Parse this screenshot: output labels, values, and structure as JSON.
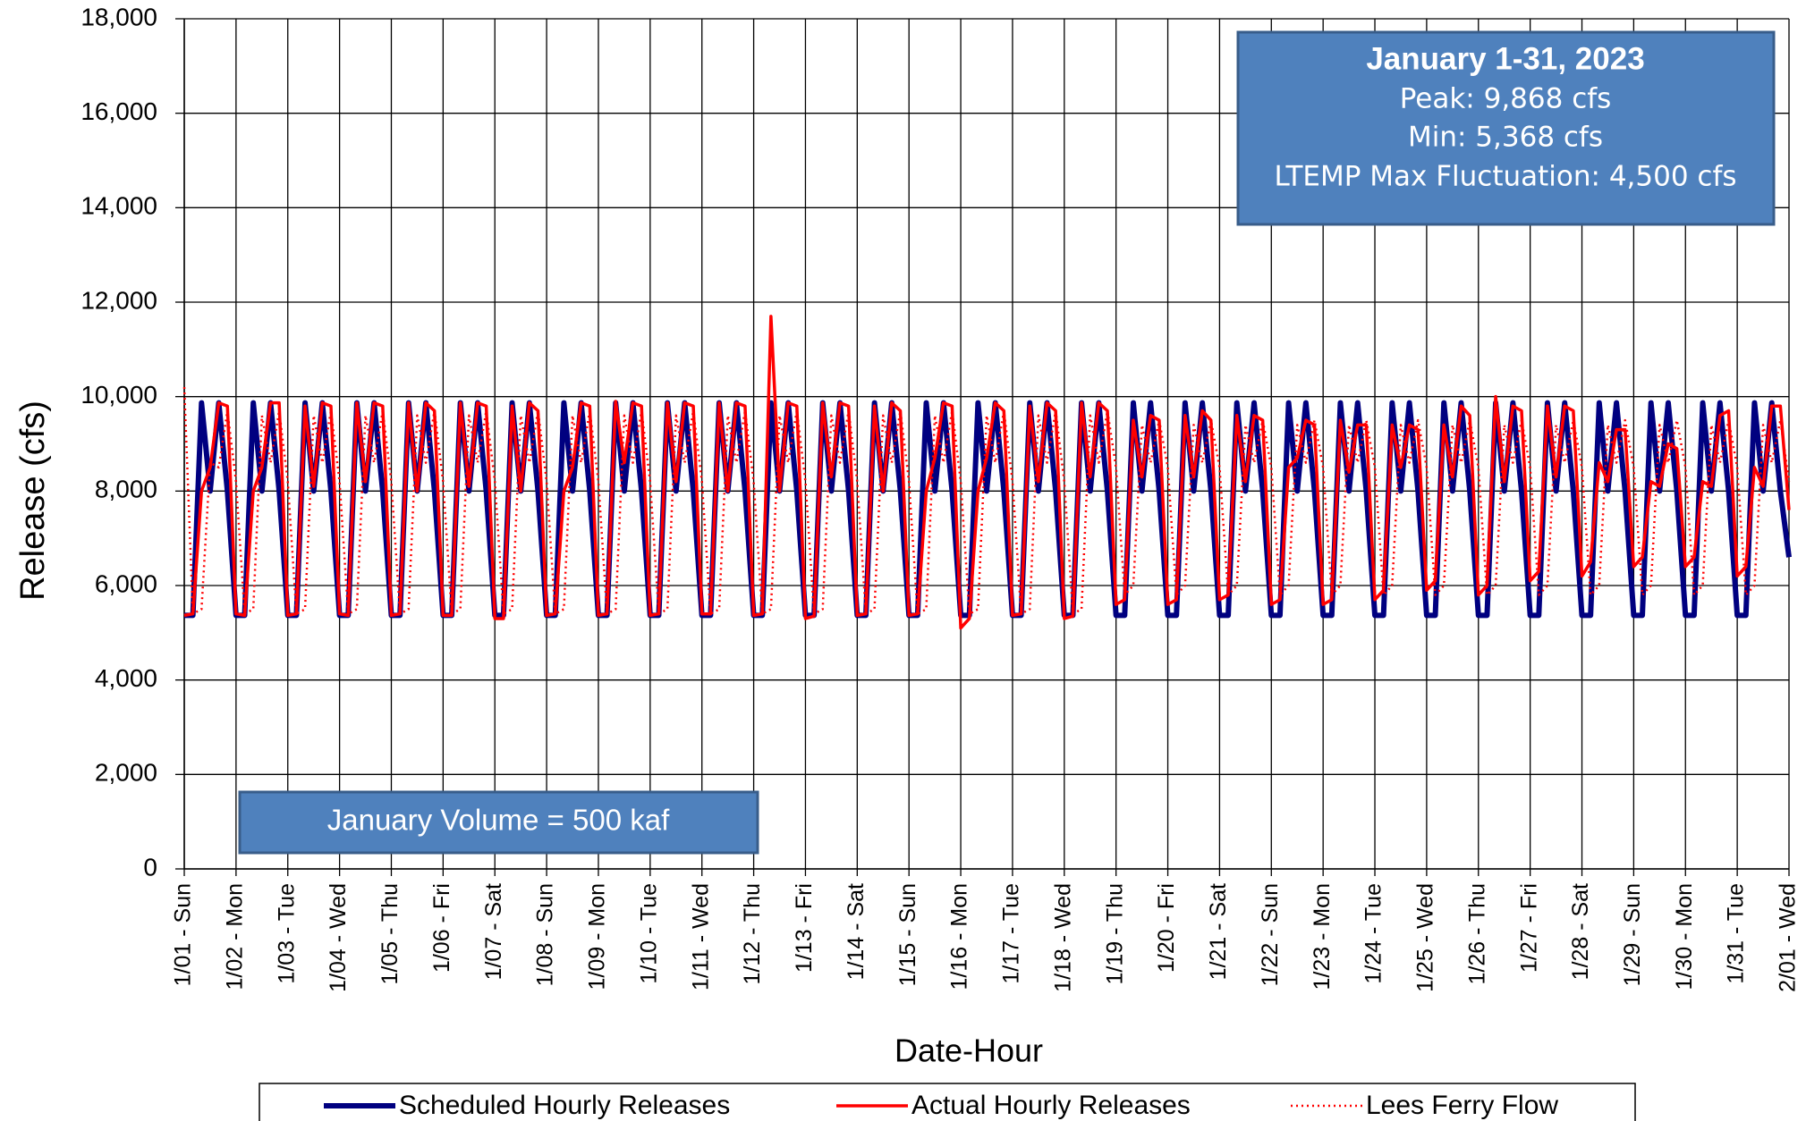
{
  "chart_data": {
    "type": "line",
    "x": [
      0,
      4,
      8,
      12,
      16,
      20,
      24,
      28,
      32,
      36,
      40,
      44,
      48,
      52,
      56,
      60,
      64,
      68,
      72,
      76,
      80,
      84,
      88,
      92,
      96,
      100,
      104,
      108,
      112,
      116,
      120,
      124,
      128,
      132,
      136,
      140,
      144,
      148,
      152,
      156,
      160,
      164,
      168,
      172,
      176,
      180,
      184,
      188,
      192,
      196,
      200,
      204,
      208,
      212,
      216,
      220,
      224,
      228,
      232,
      236,
      240,
      244,
      248,
      252,
      256,
      260,
      264,
      268,
      272,
      276,
      280,
      284,
      288,
      292,
      296,
      300,
      304,
      308,
      312,
      316,
      320,
      324,
      328,
      332,
      336,
      340,
      344,
      348,
      352,
      356,
      360,
      364,
      368,
      372,
      376,
      380,
      384,
      388,
      392,
      396,
      400,
      404,
      408,
      412,
      416,
      420,
      424,
      428,
      432,
      436,
      440,
      444,
      448,
      452,
      456,
      460,
      464,
      468,
      472,
      476,
      480,
      484,
      488,
      492,
      496,
      500,
      504,
      508,
      512,
      516,
      520,
      524,
      528,
      532,
      536,
      540,
      544,
      548,
      552,
      556,
      560,
      564,
      568,
      572,
      576,
      580,
      584,
      588,
      592,
      596,
      600,
      604,
      608,
      612,
      616,
      620,
      624,
      628,
      632,
      636,
      640,
      644,
      648,
      652,
      656,
      660,
      664,
      668,
      672,
      676,
      680,
      684,
      688,
      692,
      696,
      700,
      704,
      708,
      712,
      716,
      720,
      724,
      728,
      732,
      736,
      740,
      744
    ],
    "series": [
      {
        "name": "Scheduled Hourly Releases",
        "color": "#000080",
        "style": "solid",
        "values": [
          5368,
          5368,
          9868,
          8000,
          9868,
          8000,
          5368,
          5368,
          9868,
          8000,
          9868,
          8000,
          5368,
          5368,
          9868,
          8000,
          9868,
          8000,
          5368,
          5368,
          9868,
          8000,
          9868,
          8000,
          5368,
          5368,
          9868,
          8000,
          9868,
          8000,
          5368,
          5368,
          9868,
          8000,
          9868,
          8000,
          5368,
          5368,
          9868,
          8000,
          9868,
          8000,
          5368,
          5368,
          9868,
          8000,
          9868,
          8000,
          5368,
          5368,
          9868,
          8000,
          9868,
          8000,
          5368,
          5368,
          9868,
          8000,
          9868,
          8000,
          5368,
          5368,
          9868,
          8000,
          9868,
          8000,
          5368,
          5368,
          9868,
          8000,
          9868,
          8000,
          5368,
          5368,
          9868,
          8000,
          9868,
          8000,
          5368,
          5368,
          9868,
          8000,
          9868,
          8000,
          5368,
          5368,
          9868,
          8000,
          9868,
          8000,
          5368,
          5368,
          9868,
          8000,
          9868,
          8000,
          5368,
          5368,
          9868,
          8000,
          9868,
          8000,
          5368,
          5368,
          9868,
          8000,
          9868,
          8000,
          5368,
          5368,
          9868,
          8000,
          9868,
          8000,
          5368,
          5368,
          9868,
          8000,
          9868,
          8000,
          5368,
          5368,
          9868,
          8000,
          9868,
          8000,
          5368,
          5368,
          9868,
          8000,
          9868,
          8000,
          5368,
          5368,
          9868,
          8000,
          9868,
          8000,
          5368,
          5368,
          9868,
          8000,
          9868,
          8000,
          5368,
          5368,
          9868,
          8000,
          9868,
          8000,
          5368,
          5368,
          9868,
          8000,
          9868,
          8000,
          5368,
          5368,
          9868,
          8000,
          9868,
          8000,
          5368,
          5368,
          9868,
          8000,
          9868,
          8000,
          5368,
          5368,
          9868,
          8000,
          9868,
          8000,
          5368,
          5368,
          9868,
          8000,
          9868,
          8000,
          5368,
          5368,
          9868,
          8000,
          9868,
          8000,
          6600
        ]
      },
      {
        "name": "Actual Hourly Releases",
        "color": "#ff0000",
        "style": "solid",
        "values": [
          5368,
          5400,
          8000,
          8500,
          9868,
          9800,
          5400,
          5368,
          8000,
          8500,
          9868,
          9868,
          5368,
          5400,
          9800,
          8100,
          9868,
          9800,
          5400,
          5368,
          9868,
          8200,
          9868,
          9800,
          5368,
          5400,
          9868,
          8000,
          9868,
          9700,
          5368,
          5368,
          9868,
          8100,
          9868,
          9800,
          5300,
          5300,
          9800,
          8000,
          9868,
          9700,
          5368,
          5400,
          8000,
          8500,
          9868,
          9800,
          5368,
          5400,
          9900,
          8600,
          9868,
          9800,
          5368,
          5400,
          9868,
          8200,
          9868,
          9800,
          5400,
          5400,
          9868,
          8000,
          9868,
          9800,
          5368,
          5400,
          11700,
          8000,
          9868,
          9800,
          5300,
          5350,
          9868,
          8300,
          9868,
          9800,
          5368,
          5400,
          9800,
          8000,
          9868,
          9700,
          5368,
          5400,
          8000,
          8700,
          9868,
          9800,
          5100,
          5300,
          8000,
          8700,
          9868,
          9700,
          5368,
          5400,
          9800,
          8200,
          9868,
          9700,
          5300,
          5350,
          9868,
          8300,
          9868,
          9700,
          5600,
          5700,
          9500,
          8300,
          9600,
          9500,
          5600,
          5700,
          9600,
          8300,
          9700,
          9500,
          5700,
          5800,
          9600,
          8200,
          9600,
          9500,
          5600,
          5700,
          8500,
          8700,
          9500,
          9400,
          5600,
          5700,
          9500,
          8400,
          9400,
          9400,
          5700,
          5900,
          9400,
          8500,
          9400,
          9300,
          5900,
          6100,
          9400,
          8300,
          9800,
          9600,
          5800,
          6000,
          10000,
          8200,
          9800,
          9700,
          6100,
          6300,
          9800,
          8300,
          9800,
          9700,
          6200,
          6500,
          8600,
          8200,
          9300,
          9300,
          6400,
          6600,
          8200,
          8100,
          9000,
          8900,
          6400,
          6600,
          8200,
          8100,
          9600,
          9700,
          6200,
          6400,
          8500,
          8100,
          9800,
          9800,
          7600
        ]
      },
      {
        "name": "Lees Ferry Flow",
        "color": "#ff0000",
        "style": "dotted",
        "values": [
          10200,
          5400,
          5500,
          8600,
          8500,
          9700,
          8200,
          5400,
          5500,
          9600,
          8600,
          9700,
          8200,
          5400,
          5500,
          9600,
          8600,
          9700,
          8200,
          5400,
          5500,
          9600,
          8600,
          9700,
          8200,
          5400,
          5500,
          9600,
          8600,
          9700,
          8200,
          5400,
          5500,
          9600,
          8600,
          9700,
          8200,
          5400,
          5500,
          9600,
          8600,
          9700,
          8200,
          5400,
          5500,
          9600,
          8600,
          9700,
          8200,
          5400,
          5500,
          9600,
          8600,
          9700,
          8200,
          5400,
          5500,
          9600,
          8600,
          9700,
          8200,
          5400,
          5500,
          9600,
          8600,
          9700,
          8200,
          5400,
          5500,
          9600,
          8600,
          9700,
          8200,
          5400,
          5500,
          9600,
          8600,
          9700,
          8200,
          5400,
          5500,
          9600,
          8600,
          9700,
          8200,
          5400,
          5500,
          9600,
          8600,
          9700,
          8200,
          5400,
          5500,
          9600,
          8600,
          9700,
          8200,
          5400,
          5500,
          9600,
          8600,
          9700,
          8200,
          5400,
          5500,
          9600,
          8600,
          9700,
          8500,
          5800,
          6000,
          9400,
          8600,
          9500,
          8500,
          5800,
          6000,
          9400,
          8600,
          9500,
          8500,
          5800,
          6000,
          9400,
          8600,
          9500,
          8500,
          5800,
          6000,
          9400,
          8600,
          9500,
          8500,
          5800,
          6000,
          9400,
          8600,
          9500,
          8500,
          5800,
          6000,
          9400,
          8600,
          9500,
          8500,
          5800,
          6000,
          9400,
          8600,
          9500,
          8500,
          5800,
          6000,
          9400,
          8600,
          9500,
          8500,
          5800,
          6000,
          9400,
          8600,
          9500,
          8500,
          5800,
          6000,
          9400,
          8600,
          9500,
          8500,
          5800,
          6000,
          9400,
          8600,
          9500,
          8500,
          5800,
          6000,
          9400,
          8600,
          9500,
          8500,
          5800,
          6000,
          9400,
          8600,
          9500,
          8200
        ]
      }
    ],
    "xlim": [
      0,
      744
    ],
    "xticks": [
      {
        "value": 0,
        "label": "1/01 - Sun"
      },
      {
        "value": 24,
        "label": "1/02 - Mon"
      },
      {
        "value": 48,
        "label": "1/03 - Tue"
      },
      {
        "value": 72,
        "label": "1/04 - Wed"
      },
      {
        "value": 96,
        "label": "1/05 - Thu"
      },
      {
        "value": 120,
        "label": "1/06 - Fri"
      },
      {
        "value": 144,
        "label": "1/07 - Sat"
      },
      {
        "value": 168,
        "label": "1/08 - Sun"
      },
      {
        "value": 192,
        "label": "1/09 - Mon"
      },
      {
        "value": 216,
        "label": "1/10 - Tue"
      },
      {
        "value": 240,
        "label": "1/11 - Wed"
      },
      {
        "value": 264,
        "label": "1/12 - Thu"
      },
      {
        "value": 288,
        "label": "1/13 - Fri"
      },
      {
        "value": 312,
        "label": "1/14 - Sat"
      },
      {
        "value": 336,
        "label": "1/15 - Sun"
      },
      {
        "value": 360,
        "label": "1/16 - Mon"
      },
      {
        "value": 384,
        "label": "1/17 - Tue"
      },
      {
        "value": 408,
        "label": "1/18 - Wed"
      },
      {
        "value": 432,
        "label": "1/19 - Thu"
      },
      {
        "value": 456,
        "label": "1/20 - Fri"
      },
      {
        "value": 480,
        "label": "1/21 - Sat"
      },
      {
        "value": 504,
        "label": "1/22 - Sun"
      },
      {
        "value": 528,
        "label": "1/23 - Mon"
      },
      {
        "value": 552,
        "label": "1/24 - Tue"
      },
      {
        "value": 576,
        "label": "1/25 - Wed"
      },
      {
        "value": 600,
        "label": "1/26 - Thu"
      },
      {
        "value": 624,
        "label": "1/27 - Fri"
      },
      {
        "value": 648,
        "label": "1/28 - Sat"
      },
      {
        "value": 672,
        "label": "1/29 - Sun"
      },
      {
        "value": 696,
        "label": "1/30 - Mon"
      },
      {
        "value": 720,
        "label": "1/31 - Tue"
      },
      {
        "value": 744,
        "label": "2/01 - Wed"
      }
    ],
    "ylim": [
      0,
      18000
    ],
    "yticks": [
      0,
      {
        "value": 2000,
        "label": "2,000"
      },
      {
        "value": 4000,
        "label": "4,000"
      },
      {
        "value": 6000,
        "label": "6,000"
      },
      {
        "value": 8000,
        "label": "8,000"
      },
      {
        "value": 10000,
        "label": "10,000"
      },
      {
        "value": 12000,
        "label": "12,000"
      },
      {
        "value": 14000,
        "label": "14,000"
      },
      {
        "value": 16000,
        "label": "16,000"
      },
      {
        "value": 18000,
        "label": "18,000"
      }
    ],
    "grid": true,
    "xlabel": "Date-Hour",
    "ylabel": "Release (cfs)",
    "summary": {
      "title": "January 1-31, 2023",
      "lines": [
        "Peak: 9,868 cfs",
        "Min: 5,368 cfs",
        "LTEMP Max Fluctuation: 4,500 cfs"
      ]
    },
    "volume_note": "January Volume = 500 kaf"
  }
}
